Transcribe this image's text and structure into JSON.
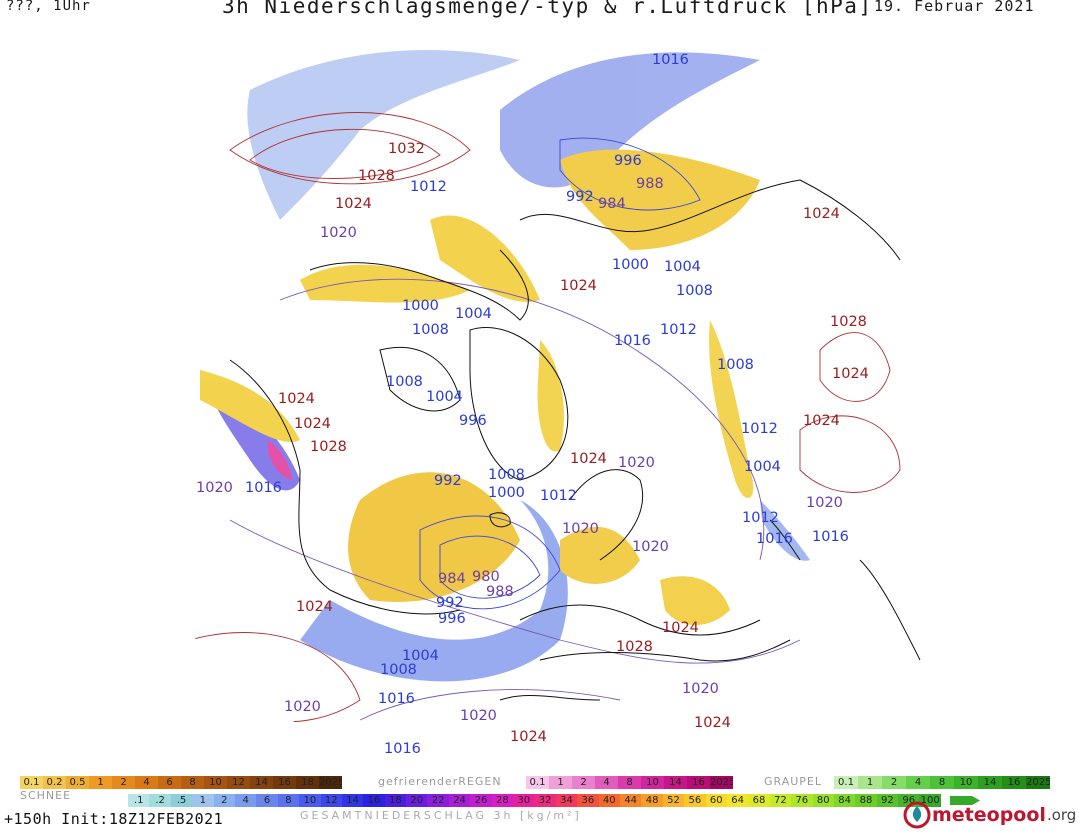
{
  "header": {
    "run_label": "???, 1Uhr",
    "title": "3h Niederschlagsmenge/-typ & r.Luftdruck [hPa]",
    "valid_date": "19. Februar 2021"
  },
  "map": {
    "high_color": "#9b1c1c",
    "low_color": "#2a3cd6",
    "mid_color": "#6a3fa8",
    "pressure_labels": [
      {
        "id": "l1",
        "t": "1016",
        "c": "low"
      },
      {
        "id": "l2",
        "t": "1032",
        "c": "high"
      },
      {
        "id": "l3",
        "t": "1028",
        "c": "high"
      },
      {
        "id": "l4",
        "t": "1024",
        "c": "high"
      },
      {
        "id": "l5",
        "t": "1020",
        "c": "mid"
      },
      {
        "id": "l6",
        "t": "1012",
        "c": "low"
      },
      {
        "id": "l7",
        "t": "996",
        "c": "low"
      },
      {
        "id": "l8",
        "t": "988",
        "c": "mid"
      },
      {
        "id": "l9",
        "t": "992",
        "c": "low"
      },
      {
        "id": "l10",
        "t": "984",
        "c": "mid"
      },
      {
        "id": "l11",
        "t": "1024",
        "c": "high"
      },
      {
        "id": "l12",
        "t": "1000",
        "c": "low"
      },
      {
        "id": "l13",
        "t": "1004",
        "c": "low"
      },
      {
        "id": "l14",
        "t": "1024",
        "c": "high"
      },
      {
        "id": "l15",
        "t": "1008",
        "c": "low"
      },
      {
        "id": "l16",
        "t": "1000",
        "c": "low"
      },
      {
        "id": "l17",
        "t": "1004",
        "c": "low"
      },
      {
        "id": "l18",
        "t": "1008",
        "c": "low"
      },
      {
        "id": "l19",
        "t": "1012",
        "c": "low"
      },
      {
        "id": "l20",
        "t": "1016",
        "c": "low"
      },
      {
        "id": "l21",
        "t": "1028",
        "c": "high"
      },
      {
        "id": "l22",
        "t": "1008",
        "c": "low"
      },
      {
        "id": "l23",
        "t": "1024",
        "c": "high"
      },
      {
        "id": "l24",
        "t": "1008",
        "c": "low"
      },
      {
        "id": "l25",
        "t": "1004",
        "c": "low"
      },
      {
        "id": "l26",
        "t": "1024",
        "c": "high"
      },
      {
        "id": "l27",
        "t": "1024",
        "c": "high"
      },
      {
        "id": "l28",
        "t": "996",
        "c": "low"
      },
      {
        "id": "l29",
        "t": "1024",
        "c": "high"
      },
      {
        "id": "l30",
        "t": "1012",
        "c": "low"
      },
      {
        "id": "l31",
        "t": "1028",
        "c": "high"
      },
      {
        "id": "l32",
        "t": "1020",
        "c": "mid"
      },
      {
        "id": "l33",
        "t": "1024",
        "c": "high"
      },
      {
        "id": "l34",
        "t": "1020",
        "c": "mid"
      },
      {
        "id": "l35",
        "t": "1004",
        "c": "low"
      },
      {
        "id": "l36",
        "t": "1020",
        "c": "mid"
      },
      {
        "id": "l37",
        "t": "1016",
        "c": "low"
      },
      {
        "id": "l38",
        "t": "992",
        "c": "low"
      },
      {
        "id": "l39",
        "t": "1008",
        "c": "low"
      },
      {
        "id": "l40",
        "t": "1000",
        "c": "low"
      },
      {
        "id": "l41",
        "t": "1012",
        "c": "low"
      },
      {
        "id": "l42",
        "t": "1020",
        "c": "mid"
      },
      {
        "id": "l43",
        "t": "1012",
        "c": "low"
      },
      {
        "id": "l44",
        "t": "1016",
        "c": "low"
      },
      {
        "id": "l45",
        "t": "1016",
        "c": "low"
      },
      {
        "id": "l46",
        "t": "1020",
        "c": "mid"
      },
      {
        "id": "l47",
        "t": "984",
        "c": "mid"
      },
      {
        "id": "l48",
        "t": "980",
        "c": "mid"
      },
      {
        "id": "l49",
        "t": "988",
        "c": "mid"
      },
      {
        "id": "l50",
        "t": "992",
        "c": "low"
      },
      {
        "id": "l51",
        "t": "996",
        "c": "low"
      },
      {
        "id": "l52",
        "t": "1024",
        "c": "high"
      },
      {
        "id": "l53",
        "t": "1004",
        "c": "low"
      },
      {
        "id": "l54",
        "t": "1008",
        "c": "low"
      },
      {
        "id": "l55",
        "t": "1028",
        "c": "high"
      },
      {
        "id": "l56",
        "t": "1024",
        "c": "high"
      },
      {
        "id": "l57",
        "t": "1016",
        "c": "low"
      },
      {
        "id": "l58",
        "t": "1020",
        "c": "mid"
      },
      {
        "id": "l59",
        "t": "1020",
        "c": "mid"
      },
      {
        "id": "l60",
        "t": "1024",
        "c": "high"
      },
      {
        "id": "l61",
        "t": "1020",
        "c": "mid"
      },
      {
        "id": "l62",
        "t": "1024",
        "c": "high"
      },
      {
        "id": "l63",
        "t": "1016",
        "c": "low"
      }
    ]
  },
  "legend": {
    "snow": {
      "label": "SCHNEE",
      "items": [
        {
          "t": "0.1",
          "c": "#f4d35e"
        },
        {
          "t": "0.2",
          "c": "#f2c14e"
        },
        {
          "t": "0.5",
          "c": "#eeae35"
        },
        {
          "t": "1",
          "c": "#ee9a25"
        },
        {
          "t": "2",
          "c": "#e48a1c"
        },
        {
          "t": "4",
          "c": "#d97a16"
        },
        {
          "t": "6",
          "c": "#c96b12"
        },
        {
          "t": "8",
          "c": "#b65e12"
        },
        {
          "t": "10",
          "c": "#a65412"
        },
        {
          "t": "12",
          "c": "#944a10"
        },
        {
          "t": "14",
          "c": "#84420f"
        },
        {
          "t": "16",
          "c": "#733a0d"
        },
        {
          "t": "18",
          "c": "#62310b"
        },
        {
          "t": "2025+",
          "c": "#4c2608"
        }
      ]
    },
    "freezing_rain": {
      "label": "gefrierenderREGEN",
      "items": [
        {
          "t": "0.1",
          "c": "#f7c6e8"
        },
        {
          "t": "1",
          "c": "#f0a0d8"
        },
        {
          "t": "2",
          "c": "#ea7fcb"
        },
        {
          "t": "4",
          "c": "#e25cbc"
        },
        {
          "t": "8",
          "c": "#d93aac"
        },
        {
          "t": "10",
          "c": "#d0259c"
        },
        {
          "t": "14",
          "c": "#c5178a"
        },
        {
          "t": "16",
          "c": "#b80d77"
        },
        {
          "t": "2025+",
          "c": "#a30660"
        }
      ]
    },
    "graupel": {
      "label": "GRAUPEL",
      "items": [
        {
          "t": "0.1",
          "c": "#c9f0b6"
        },
        {
          "t": "1",
          "c": "#a8e68c"
        },
        {
          "t": "2",
          "c": "#86dc68"
        },
        {
          "t": "4",
          "c": "#64cf4a"
        },
        {
          "t": "8",
          "c": "#4cc238"
        },
        {
          "t": "10",
          "c": "#3cb22a"
        },
        {
          "t": "14",
          "c": "#2ea020"
        },
        {
          "t": "16",
          "c": "#248e18"
        },
        {
          "t": "2025+",
          "c": "#1a7a10"
        }
      ]
    },
    "total": {
      "items": [
        {
          "t": ".1",
          "c": "#b8e6e6"
        },
        {
          "t": ".2",
          "c": "#a2dcdc"
        },
        {
          "t": ".5",
          "c": "#8ccfd8"
        },
        {
          "t": "1",
          "c": "#9ec4ee"
        },
        {
          "t": "2",
          "c": "#8ab0ee"
        },
        {
          "t": "4",
          "c": "#7a9cee"
        },
        {
          "t": "6",
          "c": "#6a86ee"
        },
        {
          "t": "8",
          "c": "#5a72ee"
        },
        {
          "t": "10",
          "c": "#4a5cec"
        },
        {
          "t": "12",
          "c": "#3c48ea"
        },
        {
          "t": "14",
          "c": "#3034e6"
        },
        {
          "t": "16",
          "c": "#2a22e0"
        },
        {
          "t": "18",
          "c": "#4a1ee0"
        },
        {
          "t": "20",
          "c": "#6a1ee0"
        },
        {
          "t": "22",
          "c": "#8a1edc"
        },
        {
          "t": "24",
          "c": "#a81ed6"
        },
        {
          "t": "26",
          "c": "#c21ece"
        },
        {
          "t": "28",
          "c": "#d81ec2"
        },
        {
          "t": "30",
          "c": "#e6209e"
        },
        {
          "t": "32",
          "c": "#ec2a7e"
        },
        {
          "t": "34",
          "c": "#f03a5e"
        },
        {
          "t": "36",
          "c": "#f2523e"
        },
        {
          "t": "40",
          "c": "#f46a2a"
        },
        {
          "t": "44",
          "c": "#f6842a"
        },
        {
          "t": "48",
          "c": "#f89c2a"
        },
        {
          "t": "52",
          "c": "#f8b42a"
        },
        {
          "t": "56",
          "c": "#f8c82a"
        },
        {
          "t": "60",
          "c": "#f8da2a"
        },
        {
          "t": "64",
          "c": "#f0e62a"
        },
        {
          "t": "68",
          "c": "#dcea2a"
        },
        {
          "t": "72",
          "c": "#c4ea2a"
        },
        {
          "t": "76",
          "c": "#aee62a"
        },
        {
          "t": "80",
          "c": "#98e02a"
        },
        {
          "t": "84",
          "c": "#82d82a"
        },
        {
          "t": "88",
          "c": "#6ccc2a"
        },
        {
          "t": "92",
          "c": "#58c02a"
        },
        {
          "t": "96",
          "c": "#46b42a"
        },
        {
          "t": "100",
          "c": "#36a82a"
        }
      ]
    }
  },
  "footer": {
    "forecast": "+150h  Init:18Z12FEB2021",
    "total_label": "GESAMTNIEDERSCHLAG 3h [kg/m²]",
    "brand_name": "meteopool",
    "brand_tld": ".org"
  }
}
